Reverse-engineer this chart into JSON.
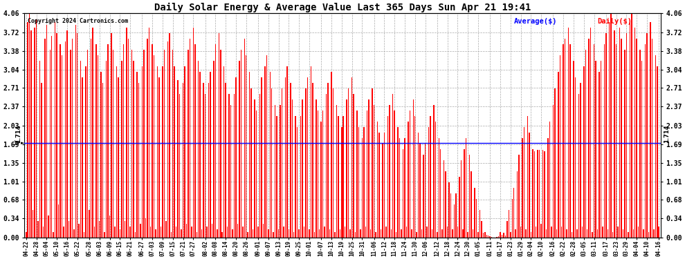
{
  "title": "Daily Solar Energy & Average Value Last 365 Days Sun Apr 21 19:41",
  "copyright": "Copyright 2024 Cartronics.com",
  "average_value": 1.714,
  "average_label": "1.714",
  "bar_color": "#ff0000",
  "average_line_color": "#0000ff",
  "background_color": "#ffffff",
  "grid_color": "#aaaaaa",
  "yticks": [
    0.0,
    0.34,
    0.68,
    1.01,
    1.35,
    1.69,
    2.03,
    2.37,
    2.71,
    3.04,
    3.38,
    3.72,
    4.06
  ],
  "ylim": [
    0.0,
    4.06
  ],
  "legend_average_color": "#0000ff",
  "legend_daily_color": "#ff0000",
  "xtick_labels": [
    "04-22",
    "04-28",
    "05-04",
    "05-10",
    "05-16",
    "05-22",
    "05-28",
    "06-03",
    "06-09",
    "06-15",
    "06-21",
    "06-27",
    "07-03",
    "07-09",
    "07-15",
    "07-21",
    "07-27",
    "08-02",
    "08-08",
    "08-14",
    "08-20",
    "08-26",
    "09-01",
    "09-07",
    "09-13",
    "09-19",
    "09-25",
    "10-01",
    "10-07",
    "10-13",
    "10-19",
    "10-25",
    "10-31",
    "11-06",
    "11-12",
    "11-18",
    "11-24",
    "11-30",
    "12-06",
    "12-12",
    "12-18",
    "12-24",
    "12-30",
    "01-05",
    "01-11",
    "01-17",
    "01-23",
    "01-29",
    "02-04",
    "02-10",
    "02-16",
    "02-22",
    "02-28",
    "03-05",
    "03-11",
    "03-17",
    "03-23",
    "03-29",
    "04-04",
    "04-10",
    "04-16"
  ],
  "daily_values": [
    0.1,
    3.9,
    4.06,
    3.75,
    0.5,
    3.8,
    3.95,
    0.3,
    3.2,
    2.8,
    0.2,
    3.6,
    3.85,
    0.4,
    3.4,
    3.65,
    0.1,
    3.9,
    3.7,
    0.6,
    3.5,
    3.3,
    0.2,
    3.55,
    3.75,
    0.3,
    3.4,
    3.6,
    0.15,
    3.85,
    3.7,
    0.25,
    3.2,
    2.9,
    0.1,
    3.1,
    3.4,
    0.5,
    3.6,
    3.8,
    0.2,
    3.5,
    3.3,
    0.3,
    3.0,
    2.8,
    0.1,
    3.2,
    3.5,
    0.4,
    3.7,
    3.4,
    0.2,
    3.1,
    2.9,
    0.15,
    3.2,
    3.5,
    0.3,
    3.8,
    3.6,
    0.2,
    3.4,
    3.2,
    0.1,
    3.0,
    2.8,
    0.25,
    3.1,
    3.4,
    0.35,
    3.6,
    3.8,
    0.2,
    3.5,
    3.3,
    0.15,
    3.1,
    2.9,
    0.2,
    3.1,
    3.4,
    0.3,
    3.55,
    3.7,
    0.1,
    3.4,
    3.1,
    0.2,
    2.85,
    2.6,
    0.15,
    2.8,
    3.1,
    0.25,
    3.4,
    3.6,
    0.2,
    3.8,
    3.5,
    0.1,
    3.2,
    3.0,
    0.15,
    2.8,
    2.6,
    0.2,
    2.8,
    3.0,
    0.25,
    3.2,
    3.5,
    0.15,
    3.7,
    3.4,
    0.1,
    3.1,
    2.8,
    0.2,
    2.6,
    2.4,
    0.15,
    2.6,
    2.9,
    0.25,
    3.2,
    3.4,
    0.2,
    3.6,
    3.3,
    0.1,
    3.0,
    2.7,
    0.15,
    2.5,
    2.3,
    0.2,
    2.6,
    2.9,
    0.25,
    3.1,
    3.3,
    0.15,
    3.0,
    2.7,
    0.1,
    2.4,
    2.2,
    0.15,
    2.4,
    2.7,
    0.2,
    2.9,
    3.1,
    0.15,
    2.8,
    2.5,
    0.1,
    2.2,
    2.0,
    0.15,
    2.2,
    2.5,
    0.2,
    2.7,
    2.9,
    0.15,
    3.1,
    2.8,
    0.1,
    2.5,
    2.3,
    0.15,
    2.1,
    2.3,
    0.2,
    2.6,
    2.8,
    0.15,
    3.0,
    2.7,
    0.1,
    2.4,
    2.2,
    0.15,
    2.0,
    2.2,
    0.2,
    2.5,
    2.7,
    0.15,
    2.9,
    2.6,
    0.1,
    2.3,
    2.0,
    0.15,
    1.8,
    2.0,
    0.2,
    2.3,
    2.5,
    0.15,
    2.7,
    2.4,
    0.1,
    2.1,
    1.9,
    0.15,
    1.7,
    1.9,
    0.2,
    2.2,
    2.4,
    0.15,
    2.6,
    2.3,
    0.1,
    2.0,
    1.8,
    0.15,
    1.6,
    1.8,
    0.2,
    2.1,
    2.3,
    0.15,
    2.5,
    2.2,
    0.1,
    1.9,
    1.7,
    0.15,
    1.5,
    1.7,
    0.2,
    2.0,
    2.2,
    0.15,
    2.4,
    2.1,
    0.1,
    1.8,
    1.6,
    0.15,
    1.4,
    1.2,
    0.2,
    1.0,
    0.8,
    0.15,
    0.6,
    0.8,
    0.2,
    1.1,
    1.4,
    0.15,
    1.6,
    1.8,
    0.1,
    1.5,
    1.2,
    0.15,
    0.9,
    0.7,
    0.1,
    0.5,
    0.3,
    0.08,
    0.1,
    0.05,
    0.03,
    0.02,
    0.01,
    0.0,
    0.0,
    0.01,
    0.02,
    0.1,
    0.05,
    0.08,
    0.03,
    0.3,
    0.5,
    0.1,
    0.7,
    0.9,
    0.15,
    1.2,
    1.5,
    0.2,
    1.8,
    2.0,
    0.15,
    2.2,
    1.9,
    0.1,
    1.6,
    1.56,
    0.2,
    1.59,
    1.59,
    0.25,
    1.59,
    1.56,
    0.15,
    1.8,
    2.1,
    0.2,
    2.4,
    2.7,
    0.15,
    3.0,
    3.3,
    0.2,
    3.5,
    3.6,
    0.15,
    3.8,
    3.5,
    0.1,
    3.2,
    2.9,
    0.15,
    2.6,
    2.8,
    0.2,
    3.1,
    3.4,
    0.15,
    3.6,
    3.8,
    0.1,
    3.5,
    3.2,
    0.15,
    3.0,
    3.2,
    0.2,
    3.5,
    3.7,
    0.15,
    3.9,
    4.06,
    0.1,
    3.75,
    3.5,
    0.2,
    3.8,
    3.6,
    0.15,
    3.4,
    3.7,
    0.1,
    3.9,
    4.06,
    0.15,
    3.8,
    3.6,
    0.2,
    3.4,
    3.2,
    0.15,
    3.5,
    3.7,
    0.1,
    3.9,
    3.6,
    0.15,
    3.3,
    3.1,
    0.2
  ]
}
